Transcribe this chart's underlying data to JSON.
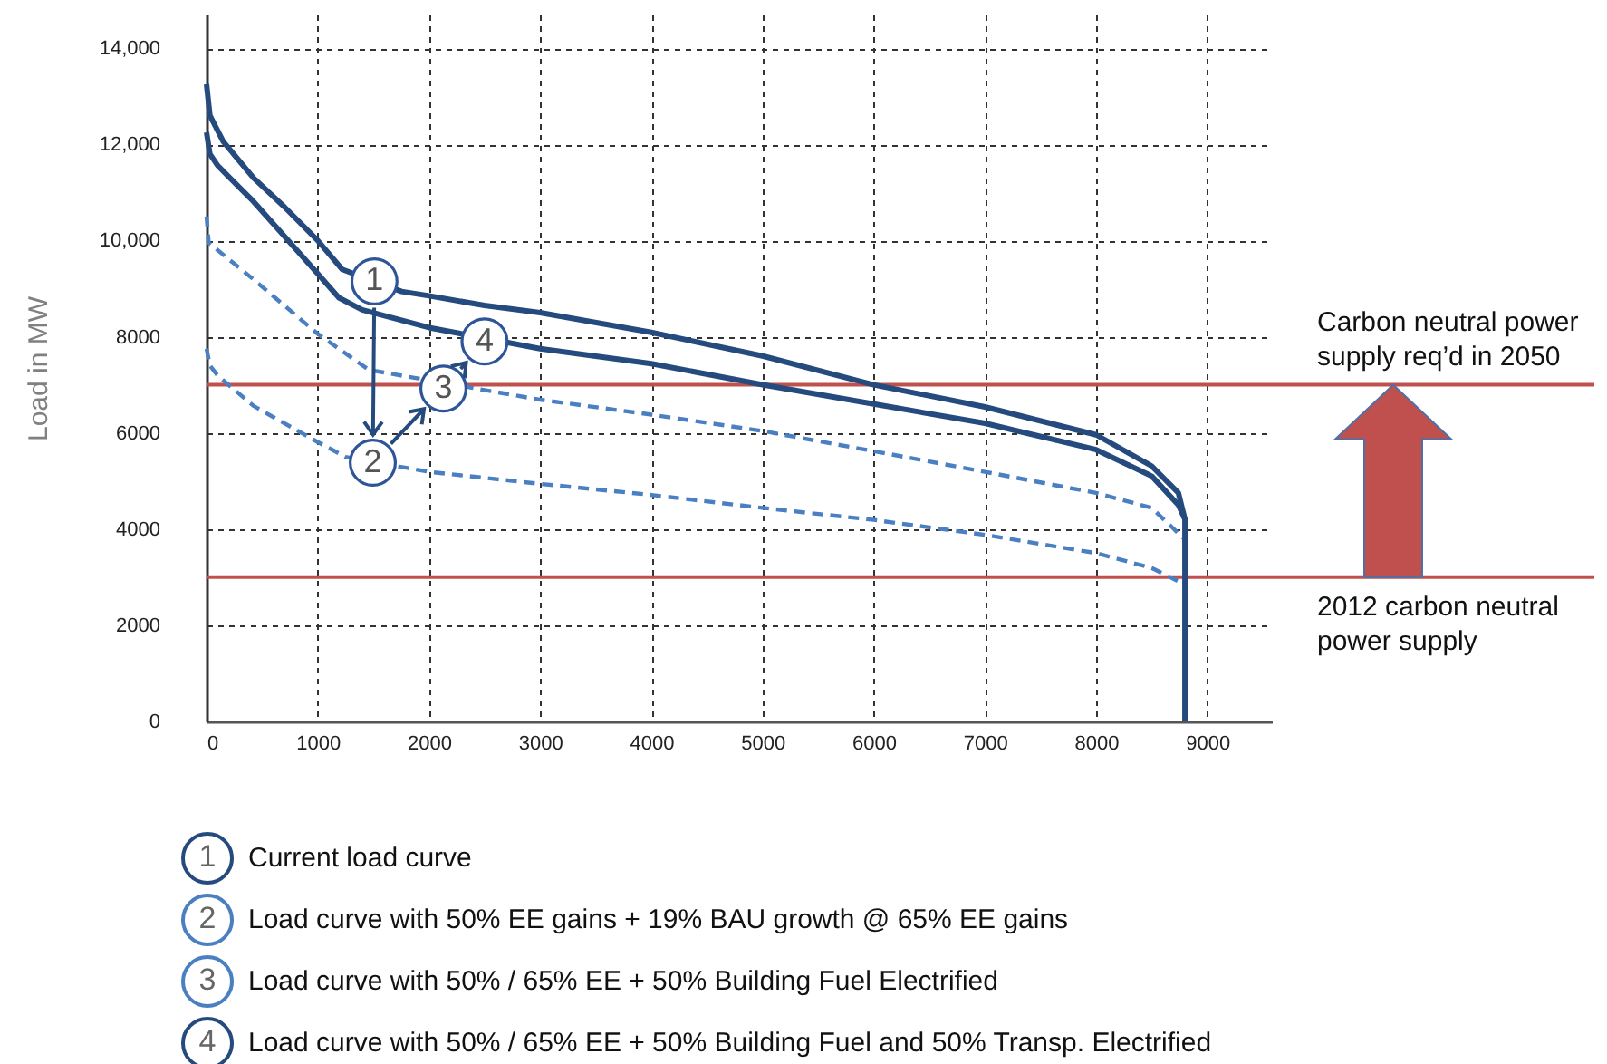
{
  "chart_data": {
    "type": "line",
    "ylabel": "Load in MW",
    "xlim": [
      0,
      9580
    ],
    "ylim": [
      0,
      14700
    ],
    "xticks": [
      0,
      1000,
      2000,
      3000,
      4000,
      5000,
      6000,
      7000,
      8000,
      9000
    ],
    "yticks": [
      0,
      2000,
      4000,
      6000,
      8000,
      {
        "value": 10000,
        "label": "10,000"
      },
      {
        "value": 12000,
        "label": "12,000"
      },
      {
        "value": 14000,
        "label": "14,000"
      }
    ],
    "grid": true,
    "legend": "bottom",
    "series": [
      {
        "name": "Current load curve",
        "color": "#254a7e",
        "line_style": "solid",
        "x": [
          0,
          30,
          150,
          423,
          700,
          1000,
          1220,
          1754,
          2000,
          2500,
          3000,
          4000,
          5000,
          6000,
          7000,
          8000,
          8500,
          8740,
          8800,
          8800
        ],
        "values": [
          13250,
          12600,
          12060,
          11300,
          10700,
          10000,
          9400,
          8940,
          8850,
          8650,
          8500,
          8090,
          7600,
          7000,
          6540,
          5960,
          5310,
          4750,
          4190,
          0
        ]
      },
      {
        "name": "Load curve with 50% EE gains + 19% BAU growth @ 65% EE gains",
        "color": "#4a7fc1",
        "line_style": "dashed",
        "x": [
          0,
          30,
          100,
          423,
          1000,
          1250,
          2000,
          3000,
          4000,
          5000,
          6000,
          7000,
          8000,
          8500,
          8750
        ],
        "values": [
          7750,
          7400,
          7190,
          6560,
          5810,
          5500,
          5190,
          4940,
          4710,
          4440,
          4190,
          3880,
          3500,
          3190,
          2900
        ]
      },
      {
        "name": "Load curve with 50% / 65% EE + 50% Building Fuel Electrified",
        "color": "#4a7fc1",
        "line_style": "dashed",
        "x": [
          0,
          20,
          423,
          1000,
          1460,
          3000,
          4000,
          5000,
          6000,
          7000,
          8000,
          8500,
          8700,
          8780
        ],
        "values": [
          10500,
          9950,
          9190,
          8060,
          7310,
          6690,
          6380,
          6040,
          5620,
          5190,
          4750,
          4440,
          4000,
          3810
        ]
      },
      {
        "name": "Load curve with 50% / 65% EE + 50% Building Fuel and 50% Transp. Electrified",
        "color": "#254a7e",
        "line_style": "solid",
        "x": [
          0,
          30,
          100,
          423,
          1000,
          1190,
          1400,
          2000,
          3000,
          4000,
          5000,
          6000,
          7000,
          8000,
          8500,
          8740,
          8800,
          8800
        ],
        "values": [
          12250,
          11800,
          11560,
          10810,
          9310,
          8810,
          8560,
          8190,
          7750,
          7440,
          7000,
          6600,
          6200,
          5650,
          5100,
          4500,
          4200,
          0
        ]
      }
    ],
    "ref_lines": [
      {
        "axis": "y",
        "value": 7000,
        "label": "Carbon neutral power supply req’d in 2050",
        "color": "#c0504d"
      },
      {
        "axis": "y",
        "value": 3000,
        "label": "2012 carbon neutral power supply",
        "color": "#c0504d"
      }
    ],
    "annotations": [
      {
        "text": "1",
        "x": 1510,
        "y": 9150
      },
      {
        "text": "2",
        "x": 1495,
        "y": 5380
      },
      {
        "text": "3",
        "x": 2130,
        "y": 6920
      },
      {
        "text": "4",
        "x": 2500,
        "y": 7900
      }
    ]
  }
}
